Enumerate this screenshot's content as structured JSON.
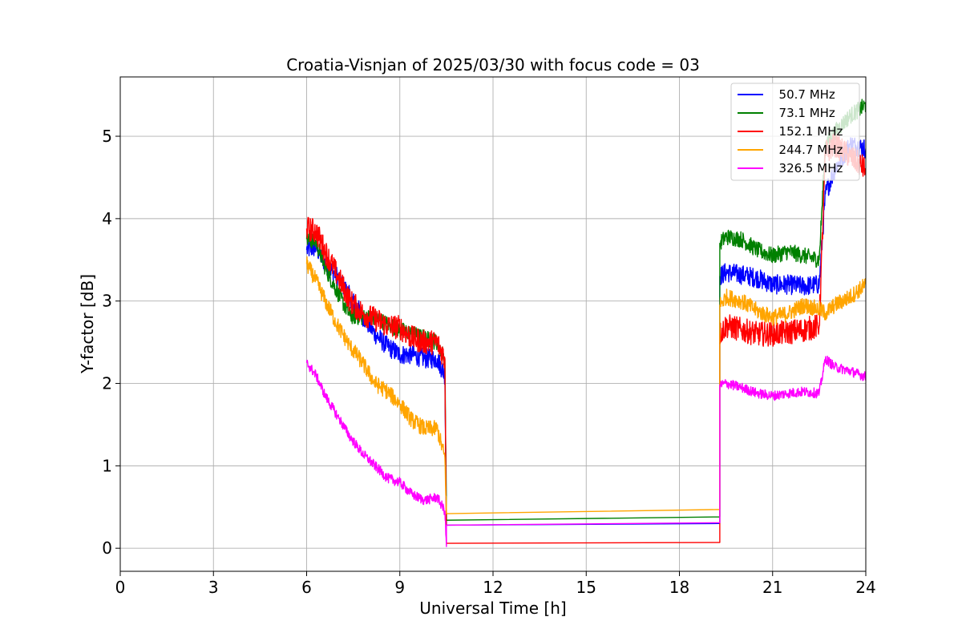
{
  "chart_data": {
    "type": "line",
    "title": "Croatia-Visnjan of 2025/03/30 with focus code = 03",
    "xlabel": "Universal Time [h]",
    "ylabel": "Y-factor [dB]",
    "xlim": [
      0,
      24
    ],
    "ylim": [
      -0.28,
      5.72
    ],
    "xticks": [
      0,
      3,
      6,
      9,
      12,
      15,
      18,
      21,
      24
    ],
    "xtick_labels": [
      "0",
      "3",
      "6",
      "9",
      "12",
      "15",
      "18",
      "21",
      "24"
    ],
    "yticks": [
      0,
      1,
      2,
      3,
      4,
      5
    ],
    "ytick_labels": [
      "0",
      "1",
      "2",
      "3",
      "4",
      "5"
    ],
    "grid": true,
    "legend_position": "top-right",
    "series": [
      {
        "name": "50.7 MHz",
        "legend_label": "  50.7 MHz",
        "color": "#0000ff",
        "x": [
          6.0,
          6.3,
          6.6,
          7.0,
          7.4,
          7.8,
          8.2,
          8.6,
          9.0,
          9.4,
          9.8,
          10.2,
          10.45,
          10.5,
          10.5,
          19.3,
          19.3,
          19.5,
          20.0,
          20.5,
          21.0,
          21.5,
          22.0,
          22.5,
          22.7,
          23.0,
          23.5,
          24.0
        ],
        "y": [
          3.62,
          3.65,
          3.45,
          3.3,
          3.05,
          2.82,
          2.6,
          2.45,
          2.35,
          2.35,
          2.3,
          2.3,
          2.1,
          0.35,
          0.28,
          0.3,
          3.3,
          3.35,
          3.32,
          3.28,
          3.2,
          3.2,
          3.18,
          3.2,
          4.3,
          4.6,
          4.9,
          4.85
        ],
        "noise": 0.12
      },
      {
        "name": "73.1 MHz",
        "legend_label": "  73.1 MHz",
        "color": "#008000",
        "x": [
          6.0,
          6.3,
          6.6,
          7.0,
          7.4,
          7.8,
          8.2,
          8.6,
          9.0,
          9.4,
          9.8,
          10.2,
          10.45,
          10.5,
          10.5,
          19.3,
          19.3,
          19.5,
          20.0,
          20.5,
          21.0,
          21.5,
          22.0,
          22.5,
          22.7,
          23.0,
          23.5,
          24.0
        ],
        "y": [
          3.75,
          3.72,
          3.4,
          3.1,
          2.82,
          2.8,
          2.8,
          2.72,
          2.65,
          2.6,
          2.55,
          2.5,
          2.3,
          0.4,
          0.34,
          0.38,
          3.7,
          3.78,
          3.75,
          3.62,
          3.55,
          3.6,
          3.55,
          3.5,
          4.9,
          5.05,
          5.25,
          5.38
        ],
        "noise": 0.1
      },
      {
        "name": "152.1 MHz",
        "legend_label": "  152.1 MHz",
        "color": "#ff0000",
        "x": [
          6.0,
          6.3,
          6.6,
          7.0,
          7.4,
          7.8,
          8.2,
          8.6,
          9.0,
          9.4,
          9.8,
          10.2,
          10.45,
          10.5,
          10.5,
          19.3,
          19.3,
          19.5,
          20.0,
          20.5,
          21.0,
          21.5,
          22.0,
          22.5,
          22.7,
          23.0,
          23.5,
          24.0
        ],
        "y": [
          3.88,
          3.85,
          3.6,
          3.3,
          3.0,
          2.85,
          2.78,
          2.7,
          2.68,
          2.55,
          2.5,
          2.5,
          2.3,
          0.1,
          0.06,
          0.07,
          2.6,
          2.7,
          2.65,
          2.6,
          2.6,
          2.62,
          2.65,
          2.7,
          4.8,
          4.9,
          4.75,
          4.6
        ],
        "noise": 0.15
      },
      {
        "name": "244.7 MHz",
        "legend_label": "  244.7 MHz",
        "color": "#ffa500",
        "x": [
          6.0,
          6.3,
          6.6,
          7.0,
          7.4,
          7.8,
          8.2,
          8.6,
          9.0,
          9.4,
          9.8,
          10.2,
          10.45,
          10.5,
          10.5,
          19.3,
          19.3,
          19.5,
          20.0,
          20.5,
          21.0,
          21.5,
          22.0,
          22.5,
          22.7,
          23.0,
          23.5,
          24.0
        ],
        "y": [
          3.45,
          3.25,
          3.0,
          2.7,
          2.45,
          2.25,
          2.0,
          1.9,
          1.75,
          1.55,
          1.45,
          1.45,
          1.1,
          0.45,
          0.42,
          0.47,
          2.95,
          3.05,
          3.0,
          2.88,
          2.8,
          2.85,
          2.95,
          2.9,
          2.85,
          2.95,
          3.05,
          3.2
        ],
        "noise": 0.1
      },
      {
        "name": "326.5 MHz",
        "legend_label": "  326.5 MHz",
        "color": "#ff00ff",
        "x": [
          6.0,
          6.3,
          6.6,
          7.0,
          7.4,
          7.8,
          8.2,
          8.6,
          9.0,
          9.4,
          9.8,
          10.2,
          10.45,
          10.5,
          10.5,
          19.3,
          19.3,
          19.5,
          20.0,
          20.5,
          21.0,
          21.5,
          22.0,
          22.5,
          22.7,
          23.0,
          23.5,
          24.0
        ],
        "y": [
          2.25,
          2.1,
          1.85,
          1.6,
          1.35,
          1.15,
          1.0,
          0.85,
          0.8,
          0.65,
          0.58,
          0.62,
          0.45,
          0.02,
          0.28,
          0.31,
          1.98,
          2.0,
          1.95,
          1.88,
          1.85,
          1.88,
          1.9,
          1.88,
          2.3,
          2.2,
          2.15,
          2.08
        ],
        "noise": 0.06
      }
    ]
  }
}
